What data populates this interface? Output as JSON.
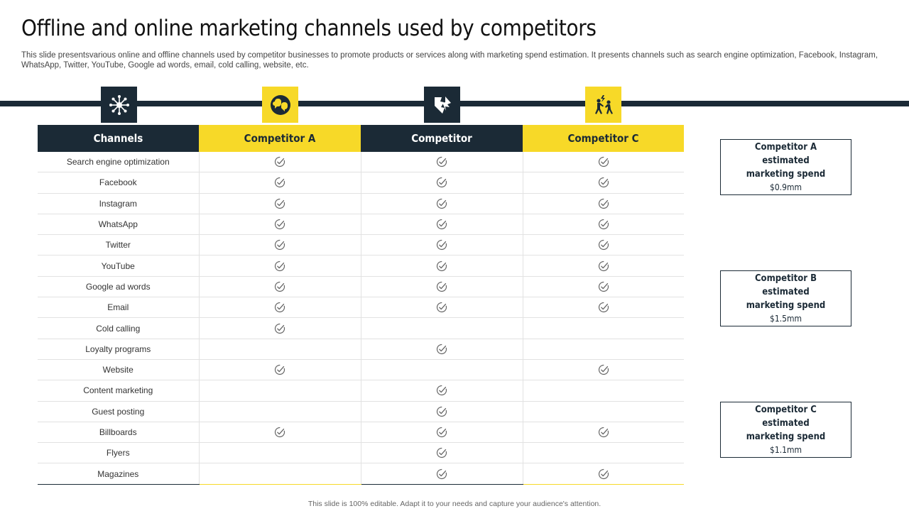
{
  "title": "Offline and online marketing channels used by competitors",
  "subtitle": "This slide presentsvarious online and offline channels used by competitor businesses to promote products or services along with marketing spend estimation. It presents channels such as search engine optimization, Facebook, Instagram, WhatsApp, Twitter, YouTube, Google ad words, email, cold calling, website, etc.",
  "icons": [
    "network-icon",
    "speech-bubbles-icon",
    "broken-tag-icon",
    "fighting-people-icon"
  ],
  "table": {
    "headers": [
      "Channels",
      "Competitor  A",
      "Competitor ",
      "Competitor  C"
    ],
    "rows": [
      {
        "channel": "Search engine optimization",
        "a": true,
        "b": true,
        "c": true
      },
      {
        "channel": "Facebook",
        "a": true,
        "b": true,
        "c": true
      },
      {
        "channel": "Instagram",
        "a": true,
        "b": true,
        "c": true
      },
      {
        "channel": "WhatsApp",
        "a": true,
        "b": true,
        "c": true
      },
      {
        "channel": "Twitter",
        "a": true,
        "b": true,
        "c": true
      },
      {
        "channel": "YouTube",
        "a": true,
        "b": true,
        "c": true
      },
      {
        "channel": "Google ad words",
        "a": true,
        "b": true,
        "c": true
      },
      {
        "channel": "Email",
        "a": true,
        "b": true,
        "c": true
      },
      {
        "channel": "Cold calling",
        "a": true,
        "b": false,
        "c": false
      },
      {
        "channel": "Loyalty programs",
        "a": false,
        "b": true,
        "c": false
      },
      {
        "channel": "Website",
        "a": true,
        "b": false,
        "c": true
      },
      {
        "channel": "Content marketing",
        "a": false,
        "b": true,
        "c": false
      },
      {
        "channel": "Guest posting",
        "a": false,
        "b": true,
        "c": false
      },
      {
        "channel": "Billboards",
        "a": true,
        "b": true,
        "c": true
      },
      {
        "channel": "Flyers",
        "a": false,
        "b": true,
        "c": false
      },
      {
        "channel": "Magazines",
        "a": false,
        "b": true,
        "c": true
      }
    ]
  },
  "spend": [
    {
      "label": "Competitor  A estimated marketing  spend",
      "amount": "$0.9mm"
    },
    {
      "label": "Competitor  B estimated marketing  spend",
      "amount": "$1.5mm"
    },
    {
      "label": "Competitor  C estimated marketing  spend",
      "amount": "$1.1mm"
    }
  ],
  "footer": "This slide is 100% editable.  Adapt it to your needs and capture your audience's attention.",
  "colors": {
    "dark": "#1b2a36",
    "accent": "#f7d928"
  }
}
